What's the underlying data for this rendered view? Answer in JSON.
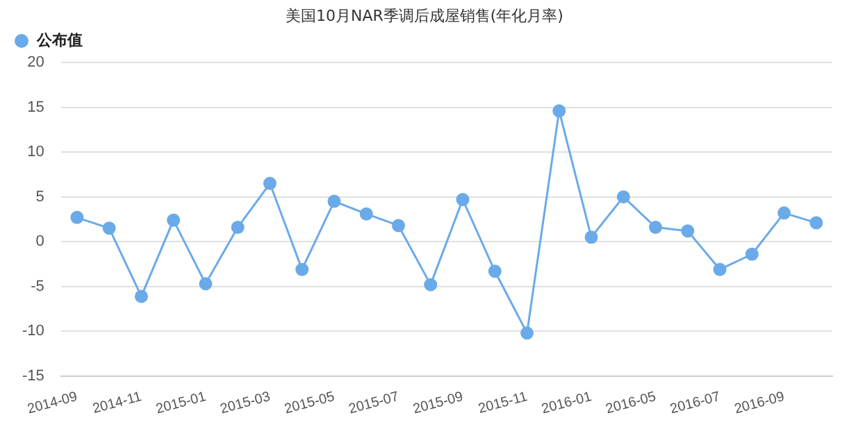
{
  "chart_data": {
    "type": "line",
    "title": "美国10月NAR季调后成屋销售(年化月率)",
    "categories": [
      "2014-09",
      null,
      "2014-11",
      null,
      "2015-01",
      null,
      "2015-03",
      null,
      "2015-05",
      null,
      "2015-07",
      null,
      "2015-09",
      null,
      "2015-11",
      null,
      "2016-01",
      null,
      "2016-05",
      null,
      "2016-07",
      null,
      "2016-09",
      null
    ],
    "series": [
      {
        "name": "公布值",
        "color": "#6aaae8",
        "values": [
          2.7,
          1.5,
          -6.1,
          2.4,
          -4.7,
          1.6,
          6.5,
          -3.1,
          4.5,
          3.1,
          1.8,
          -4.8,
          4.7,
          -3.3,
          -10.2,
          14.6,
          0.5,
          5.0,
          1.6,
          1.2,
          -3.1,
          -1.4,
          3.2,
          2.1
        ]
      }
    ],
    "ylim": [
      -15,
      20
    ],
    "yticks": [
      -15,
      -10,
      -5,
      0,
      5,
      10,
      15,
      20
    ],
    "grid": "y",
    "legend": "top left",
    "marker": "circle",
    "line_style": "solid"
  }
}
